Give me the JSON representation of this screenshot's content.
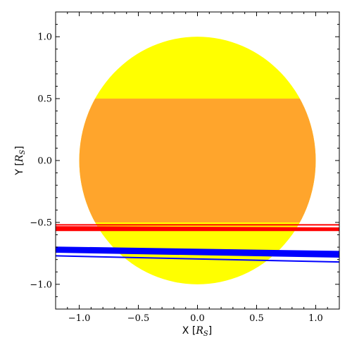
{
  "chart_data": {
    "type": "line",
    "title": "",
    "xlabel": {
      "prefix": "X [",
      "symbol": "R",
      "subscript": "S",
      "suffix": "]"
    },
    "ylabel": {
      "prefix": "Y [",
      "symbol": "R",
      "subscript": "S",
      "suffix": "]"
    },
    "xlim": [
      -1.2,
      1.2
    ],
    "ylim": [
      -1.2,
      1.2
    ],
    "x_ticks": [
      -1.0,
      -0.5,
      0.0,
      0.5,
      1.0
    ],
    "y_ticks": [
      -1.0,
      -0.5,
      0.0,
      0.5,
      1.0
    ],
    "x_tick_labels": [
      "−1.0",
      "−0.5",
      "0.0",
      "0.5",
      "1.0"
    ],
    "y_tick_labels": [
      "−1.0",
      "−0.5",
      "0.0",
      "0.5",
      "1.0"
    ],
    "grid": false,
    "disk": {
      "center": [
        0,
        0
      ],
      "radius": 1.0,
      "color": "#ffff00"
    },
    "band": {
      "y_min": -0.5,
      "y_max": 0.5,
      "color": "#ffa52c"
    },
    "tracks": [
      {
        "color": "#ff0000",
        "bands": [
          {
            "x": [
              -1.2,
              1.2
            ],
            "y_top": [
              -0.53,
              -0.54
            ],
            "y_bottom": [
              -0.57,
              -0.57
            ]
          }
        ],
        "lines": [
          {
            "x": [
              -1.2,
              1.2
            ],
            "y": [
              -0.52,
              -0.52
            ]
          }
        ]
      },
      {
        "color": "#0000ff",
        "bands": [
          {
            "x": [
              -1.2,
              1.2
            ],
            "y_top": [
              -0.695,
              -0.73
            ],
            "y_bottom": [
              -0.745,
              -0.785
            ]
          }
        ],
        "lines": [
          {
            "x": [
              -1.2,
              1.2
            ],
            "y": [
              -0.77,
              -0.82
            ]
          }
        ]
      }
    ]
  }
}
